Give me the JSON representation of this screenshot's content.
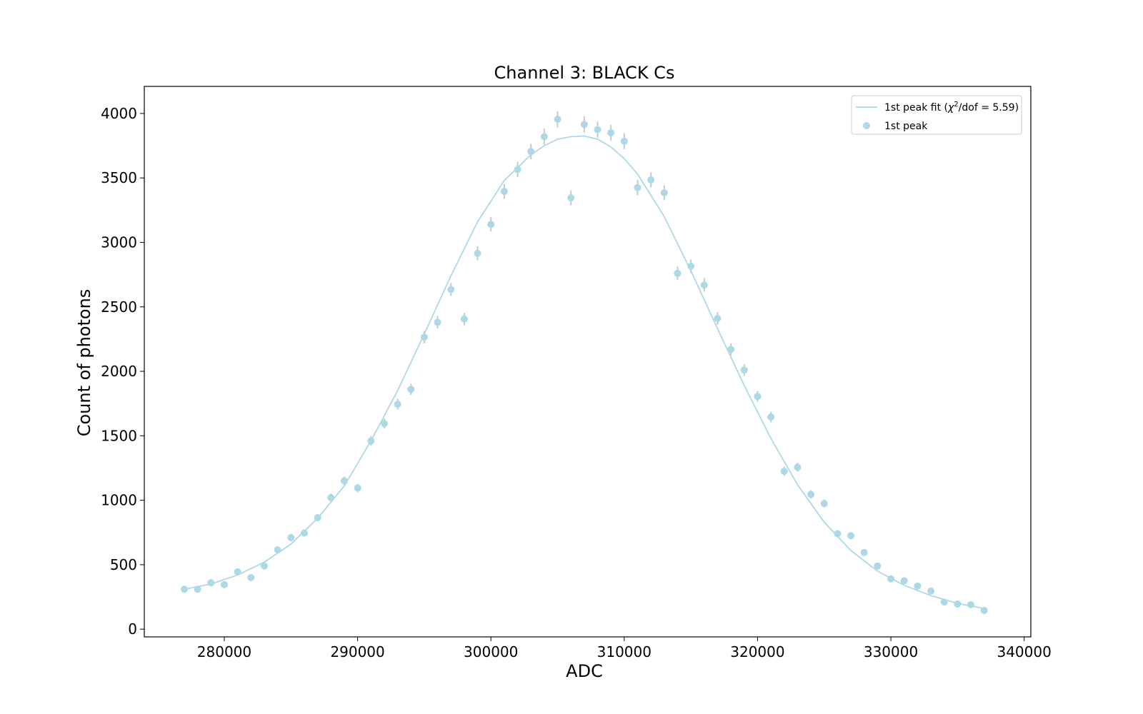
{
  "chart_data": {
    "type": "scatter",
    "title": "Channel 3: BLACK Cs",
    "xlabel": "ADC",
    "ylabel": "Count of photons",
    "xlim": [
      274000,
      340500
    ],
    "ylim": [
      -60,
      4210
    ],
    "xticks": [
      280000,
      290000,
      300000,
      310000,
      320000,
      330000,
      340000
    ],
    "yticks": [
      0,
      500,
      1000,
      1500,
      2000,
      2500,
      3000,
      3500,
      4000
    ],
    "grid": false,
    "legend_position": "top-right",
    "colors": {
      "series": "#add8e6",
      "error_bar": "#c8c8c8",
      "frame": "#000000"
    },
    "series": [
      {
        "name": "1st peak fit",
        "legend_prefix": "1st peak fit (",
        "legend_chi": "χ",
        "legend_sup": "2",
        "legend_suffix": "/dof = 5.59)",
        "kind": "line",
        "x": [
          277000,
          279000,
          281000,
          283000,
          285000,
          287000,
          289000,
          291000,
          293000,
          295000,
          297000,
          299000,
          301000,
          303000,
          304000,
          305000,
          306000,
          307000,
          308000,
          309000,
          310000,
          311000,
          313000,
          315000,
          317000,
          319000,
          321000,
          323000,
          325000,
          327000,
          329000,
          331000,
          333000,
          335000,
          337000
        ],
        "y": [
          310,
          350,
          420,
          520,
          660,
          860,
          1110,
          1460,
          1850,
          2290,
          2740,
          3160,
          3480,
          3680,
          3750,
          3800,
          3820,
          3825,
          3800,
          3740,
          3650,
          3530,
          3200,
          2780,
          2330,
          1890,
          1480,
          1120,
          830,
          610,
          450,
          340,
          260,
          200,
          160
        ]
      },
      {
        "name": "1st peak",
        "kind": "errorbar",
        "x": [
          277000,
          278000,
          279000,
          280000,
          281000,
          282000,
          283000,
          284000,
          285000,
          286000,
          287000,
          288000,
          289000,
          290000,
          291000,
          292000,
          293000,
          294000,
          295000,
          296000,
          297000,
          298000,
          299000,
          300000,
          301000,
          302000,
          303000,
          304000,
          305000,
          306000,
          307000,
          308000,
          309000,
          310000,
          311000,
          312000,
          313000,
          314000,
          315000,
          316000,
          317000,
          318000,
          319000,
          320000,
          321000,
          322000,
          323000,
          324000,
          325000,
          326000,
          327000,
          328000,
          329000,
          330000,
          331000,
          332000,
          333000,
          334000,
          335000,
          336000,
          337000
        ],
        "y": [
          310,
          310,
          360,
          345,
          445,
          400,
          490,
          615,
          710,
          745,
          865,
          1020,
          1150,
          1095,
          1460,
          1595,
          1745,
          1860,
          2265,
          2380,
          2635,
          2405,
          2915,
          3140,
          3395,
          3565,
          3705,
          3820,
          3955,
          3345,
          3915,
          3875,
          3850,
          3785,
          3425,
          3485,
          3385,
          2760,
          2815,
          2670,
          2410,
          2170,
          2010,
          1805,
          1645,
          1225,
          1255,
          1045,
          975,
          740,
          725,
          595,
          490,
          390,
          375,
          335,
          295,
          210,
          195,
          190,
          145
        ],
        "yerr": [
          18,
          18,
          19,
          19,
          21,
          20,
          22,
          25,
          27,
          27,
          29,
          32,
          34,
          33,
          38,
          40,
          42,
          43,
          48,
          49,
          51,
          49,
          54,
          56,
          58,
          60,
          61,
          62,
          63,
          58,
          63,
          62,
          62,
          62,
          59,
          59,
          58,
          53,
          53,
          52,
          49,
          47,
          45,
          42,
          41,
          35,
          35,
          32,
          31,
          27,
          27,
          24,
          22,
          20,
          19,
          18,
          17,
          14,
          14,
          14,
          12
        ]
      }
    ]
  }
}
